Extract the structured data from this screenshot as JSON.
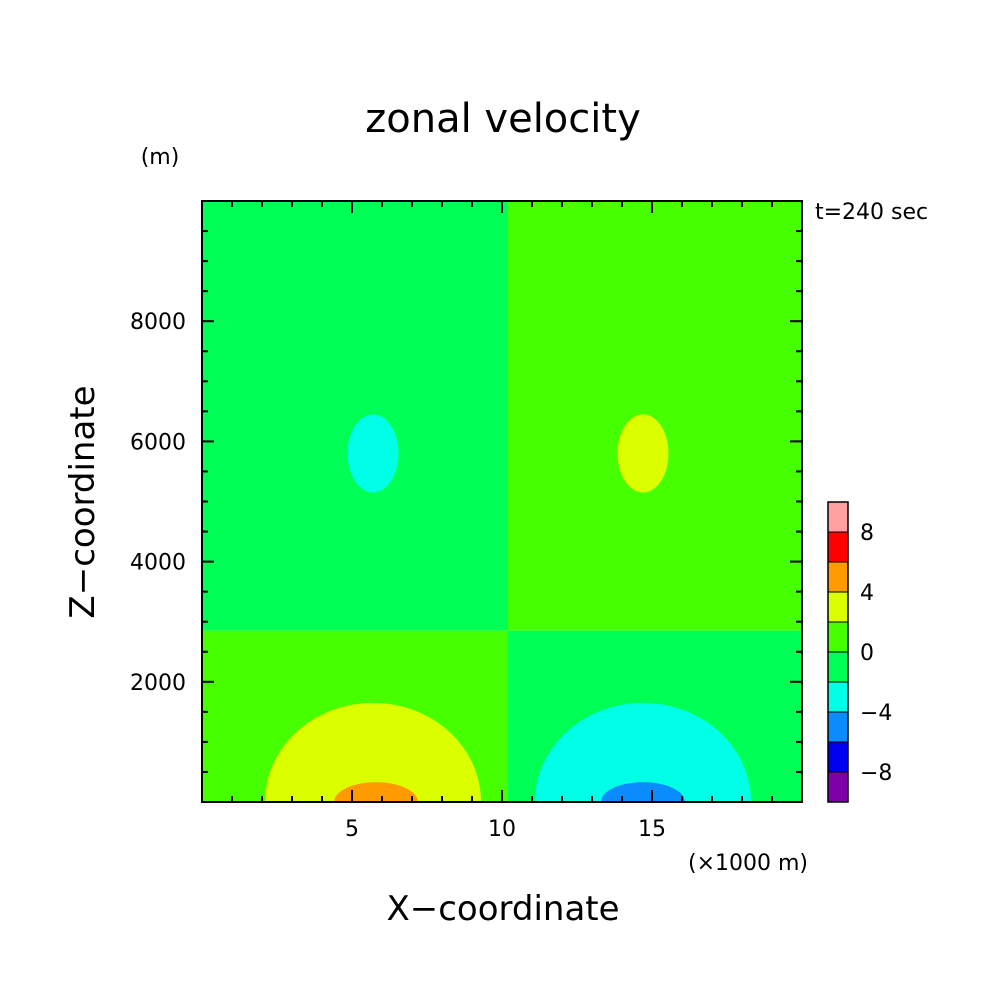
{
  "chart_data": {
    "type": "heatmap",
    "title": "zonal velocity",
    "xlabel": "X−coordinate",
    "ylabel": "Z−coordinate",
    "x_unit": "(×1000 m)",
    "y_unit": "(m)",
    "time_label": "t=240 sec",
    "xlim": [
      0,
      20
    ],
    "ylim": [
      0,
      10000
    ],
    "x_ticks": [
      {
        "value": 5,
        "label": "5"
      },
      {
        "value": 10,
        "label": "10"
      },
      {
        "value": 15,
        "label": "15"
      }
    ],
    "y_ticks": [
      {
        "value": 2000,
        "label": "2000"
      },
      {
        "value": 4000,
        "label": "4000"
      },
      {
        "value": 6000,
        "label": "6000"
      },
      {
        "value": 8000,
        "label": "8000"
      }
    ],
    "colorbar": {
      "levels": [
        -10,
        -8,
        -6,
        -4,
        -2,
        0,
        2,
        4,
        6,
        8,
        10
      ],
      "colors": [
        "#7d00a8",
        "#0000f0",
        "#0a8cff",
        "#00ffe6",
        "#00ff55",
        "#46ff00",
        "#dcff00",
        "#ff9b00",
        "#ff0000",
        "#ffa0a0"
      ],
      "tick_labels": [
        {
          "value": -8,
          "label": "−8"
        },
        {
          "value": -4,
          "label": "−4"
        },
        {
          "value": 0,
          "label": "0"
        },
        {
          "value": 4,
          "label": "4"
        },
        {
          "value": 8,
          "label": "8"
        }
      ]
    },
    "regions": [
      {
        "name": "upper-left",
        "value_range": [
          -2,
          0
        ],
        "x": [
          0,
          10.2
        ],
        "z": [
          2850,
          10000
        ]
      },
      {
        "name": "upper-right",
        "value_range": [
          0,
          2
        ],
        "x": [
          10.2,
          20
        ],
        "z": [
          2850,
          10000
        ]
      },
      {
        "name": "lower-left",
        "value_range": [
          0,
          2
        ],
        "x": [
          0,
          10.2
        ],
        "z": [
          0,
          2850
        ]
      },
      {
        "name": "lower-right",
        "value_range": [
          -2,
          0
        ],
        "x": [
          10.2,
          20
        ],
        "z": [
          0,
          2850
        ]
      },
      {
        "name": "left-upper-cell",
        "value_range": [
          -4,
          -2
        ],
        "center": [
          5.7,
          5800
        ],
        "radius": [
          0.85,
          650
        ]
      },
      {
        "name": "right-upper-cell",
        "value_range": [
          2,
          4
        ],
        "center": [
          14.7,
          5800
        ],
        "radius": [
          0.85,
          650
        ]
      },
      {
        "name": "left-low-cell",
        "value_range": [
          2,
          4
        ],
        "center": [
          5.7,
          0
        ],
        "radius": [
          3.6,
          1650
        ]
      },
      {
        "name": "right-low-cell",
        "value_range": [
          -4,
          -2
        ],
        "center": [
          14.7,
          0
        ],
        "radius": [
          3.6,
          1650
        ]
      },
      {
        "name": "left-core",
        "value_range": [
          4,
          6
        ],
        "center": [
          5.8,
          0
        ],
        "radius": [
          1.4,
          330
        ]
      },
      {
        "name": "right-core",
        "value_range": [
          -6,
          -4
        ],
        "center": [
          14.7,
          0
        ],
        "radius": [
          1.4,
          330
        ]
      }
    ]
  }
}
